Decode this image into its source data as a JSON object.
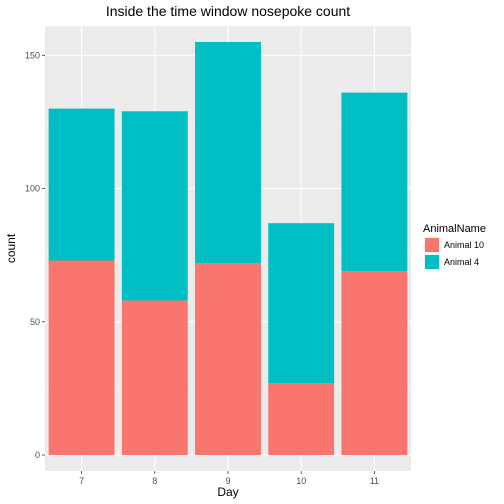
{
  "chart_data": {
    "type": "bar",
    "stacked": true,
    "title": "Inside the time window nosepoke count",
    "xlabel": "Day",
    "ylabel": "count",
    "categories": [
      "7",
      "8",
      "9",
      "10",
      "11"
    ],
    "series": [
      {
        "name": "Animal 10",
        "color": "#F8766D",
        "values": [
          73,
          58,
          72,
          27,
          69
        ]
      },
      {
        "name": "Animal 4",
        "color": "#00BFC4",
        "values": [
          57,
          71,
          83,
          60,
          67
        ]
      }
    ],
    "totals": [
      130,
      129,
      155,
      87,
      136
    ],
    "ylim": [
      -6,
      161
    ],
    "yticks": [
      0,
      50,
      100,
      150
    ],
    "grid": true,
    "legend": {
      "title": "AnimalName",
      "position": "right"
    }
  }
}
